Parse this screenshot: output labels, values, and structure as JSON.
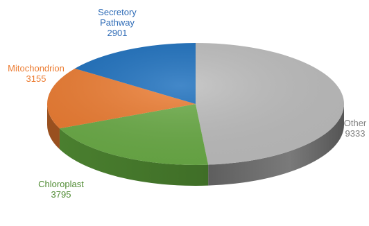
{
  "chart_data": {
    "type": "pie",
    "style": "3d",
    "title": "",
    "slices": [
      {
        "name": "Other",
        "value": 9333,
        "color": "#bdbdbd"
      },
      {
        "name": "Chloroplast",
        "value": 3795,
        "color": "#6aab46"
      },
      {
        "name": "Mitochondrion",
        "value": 3155,
        "color": "#ec7b30"
      },
      {
        "name": "Secretory Pathway",
        "value": 2901,
        "color": "#1a6ebd"
      }
    ],
    "labels": [
      {
        "lines": [
          "Other",
          "9333"
        ],
        "color": "#7f7f7f"
      },
      {
        "lines": [
          "Chloroplast",
          "3795"
        ],
        "color": "#4e8a31"
      },
      {
        "lines": [
          "Mitochondrion",
          "3155"
        ],
        "color": "#ec7b30"
      },
      {
        "lines": [
          "Secretory",
          "Pathway",
          "2901"
        ],
        "color": "#2e6bb6"
      }
    ],
    "legend": "none"
  }
}
